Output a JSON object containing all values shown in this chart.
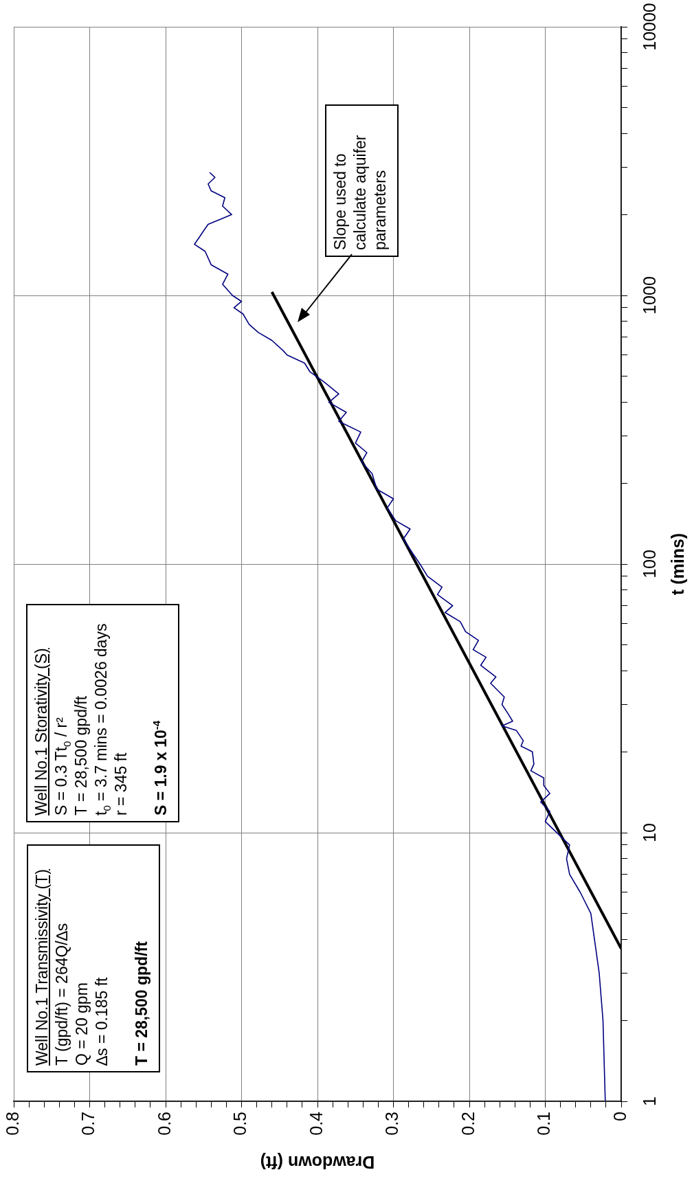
{
  "chart_data": {
    "type": "line",
    "xlabel": "Drawdown (ft)",
    "ylabel": "t (mins)",
    "log": "y",
    "grid": true,
    "legend": false,
    "xlim": [
      0.8,
      0
    ],
    "ylim": [
      1,
      10000
    ],
    "yticks": [
      1,
      {
        "value": 2,
        "label": null
      },
      {
        "value": 3,
        "label": null
      },
      {
        "value": 4,
        "label": null
      },
      {
        "value": 5,
        "label": null
      },
      {
        "value": 6,
        "label": null
      },
      {
        "value": 7,
        "label": null
      },
      {
        "value": 8,
        "label": null
      },
      {
        "value": 9,
        "label": null
      },
      10,
      {
        "value": 20,
        "label": null
      },
      {
        "value": 30,
        "label": null
      },
      {
        "value": 40,
        "label": null
      },
      {
        "value": 50,
        "label": null
      },
      {
        "value": 60,
        "label": null
      },
      {
        "value": 70,
        "label": null
      },
      {
        "value": 80,
        "label": null
      },
      {
        "value": 90,
        "label": null
      },
      100,
      {
        "value": 200,
        "label": null
      },
      {
        "value": 300,
        "label": null
      },
      {
        "value": 400,
        "label": null
      },
      {
        "value": 500,
        "label": null
      },
      {
        "value": 600,
        "label": null
      },
      {
        "value": 700,
        "label": null
      },
      {
        "value": 800,
        "label": null
      },
      {
        "value": 900,
        "label": null
      },
      1000,
      {
        "value": 2000,
        "label": null
      },
      {
        "value": 3000,
        "label": null
      },
      {
        "value": 4000,
        "label": null
      },
      {
        "value": 5000,
        "label": null
      },
      {
        "value": 6000,
        "label": null
      },
      {
        "value": 7000,
        "label": null
      },
      {
        "value": 8000,
        "label": null
      },
      {
        "value": 9000,
        "label": null
      },
      10000
    ],
    "xticks": [
      0,
      {
        "value": 0.02,
        "label": null
      },
      {
        "value": 0.04,
        "label": null
      },
      {
        "value": 0.06,
        "label": null
      },
      {
        "value": 0.08,
        "label": null
      },
      0.1,
      {
        "value": 0.12,
        "label": null
      },
      {
        "value": 0.14,
        "label": null
      },
      {
        "value": 0.16,
        "label": null
      },
      {
        "value": 0.18,
        "label": null
      },
      0.2,
      {
        "value": 0.22,
        "label": null
      },
      {
        "value": 0.24,
        "label": null
      },
      {
        "value": 0.26,
        "label": null
      },
      {
        "value": 0.28,
        "label": null
      },
      0.3,
      {
        "value": 0.32,
        "label": null
      },
      {
        "value": 0.34,
        "label": null
      },
      {
        "value": 0.36,
        "label": null
      },
      {
        "value": 0.38,
        "label": null
      },
      0.4,
      {
        "value": 0.42,
        "label": null
      },
      {
        "value": 0.44,
        "label": null
      },
      {
        "value": 0.46,
        "label": null
      },
      {
        "value": 0.48,
        "label": null
      },
      0.5,
      {
        "value": 0.52,
        "label": null
      },
      {
        "value": 0.54,
        "label": null
      },
      {
        "value": 0.56,
        "label": null
      },
      {
        "value": 0.58,
        "label": null
      },
      0.6,
      {
        "value": 0.62,
        "label": null
      },
      {
        "value": 0.64,
        "label": null
      },
      {
        "value": 0.66,
        "label": null
      },
      {
        "value": 0.68,
        "label": null
      },
      0.7,
      {
        "value": 0.72,
        "label": null
      },
      {
        "value": 0.74,
        "label": null
      },
      {
        "value": 0.76,
        "label": null
      },
      {
        "value": 0.78,
        "label": null
      },
      0.8
    ],
    "series": [
      {
        "color": "#000080",
        "values": [
          1,
          2,
          3,
          5,
          6,
          7,
          8,
          9,
          11,
          12,
          13,
          14,
          15,
          16,
          17,
          18,
          20,
          21,
          22,
          24,
          25,
          26,
          28,
          30,
          32,
          36,
          38,
          42,
          45,
          48,
          52,
          56,
          61,
          66,
          70,
          77,
          82,
          90,
          100,
          110,
          124,
          135,
          145,
          162,
          175,
          190,
          217,
          240,
          260,
          282,
          310,
          340,
          367,
          400,
          430,
          478,
          520,
          560,
          600,
          622,
          680,
          728,
          780,
          853,
          900,
          950,
          1000,
          1100,
          1200,
          1300,
          1460,
          1550,
          1640,
          1740,
          1840,
          1920,
          2000,
          2150,
          2310,
          2450,
          2600,
          2750,
          2870
        ],
        "x": [
          0.021,
          0.024,
          0.029,
          0.04,
          0.054,
          0.068,
          0.072,
          0.068,
          0.1,
          0.094,
          0.106,
          0.094,
          0.102,
          0.102,
          0.119,
          0.115,
          0.117,
          0.132,
          0.129,
          0.138,
          0.157,
          0.143,
          0.15,
          0.157,
          0.154,
          0.172,
          0.165,
          0.185,
          0.178,
          0.195,
          0.188,
          0.205,
          0.212,
          0.232,
          0.222,
          0.242,
          0.236,
          0.255,
          0.265,
          0.275,
          0.287,
          0.278,
          0.297,
          0.308,
          0.3,
          0.322,
          0.328,
          0.342,
          0.335,
          0.35,
          0.343,
          0.372,
          0.362,
          0.385,
          0.372,
          0.392,
          0.41,
          0.417,
          0.44,
          0.445,
          0.46,
          0.478,
          0.49,
          0.498,
          0.51,
          0.5,
          0.512,
          0.525,
          0.518,
          0.54,
          0.548,
          0.562,
          0.556,
          0.55,
          0.544,
          0.528,
          0.513,
          0.525,
          0.522,
          0.54,
          0.544,
          0.535,
          0.542
        ]
      },
      {
        "color": "#000000",
        "x": [
          0,
          0.46
        ],
        "values": [
          3.7,
          1030
        ]
      }
    ],
    "annotations": [
      "Well No.1 Transmissivity (T)\nT (gpd/ft) = 264Q/∆s\nQ = 20 gpm\n∆s = 0.185 ft\n\nT = 28,500 gpd/ft",
      "Well No.1 Storativity (S)\nS = 0.3 Tt$_{0}$ / r²\nT = 28,500 gpd/ft\nt$_{0}$ = 3.7 mins = 0.0026 days\nr = 345 ft\n\nS = 1.9 x 10$^{-4}$",
      "Slope used to calculate aquifer parameters"
    ]
  }
}
